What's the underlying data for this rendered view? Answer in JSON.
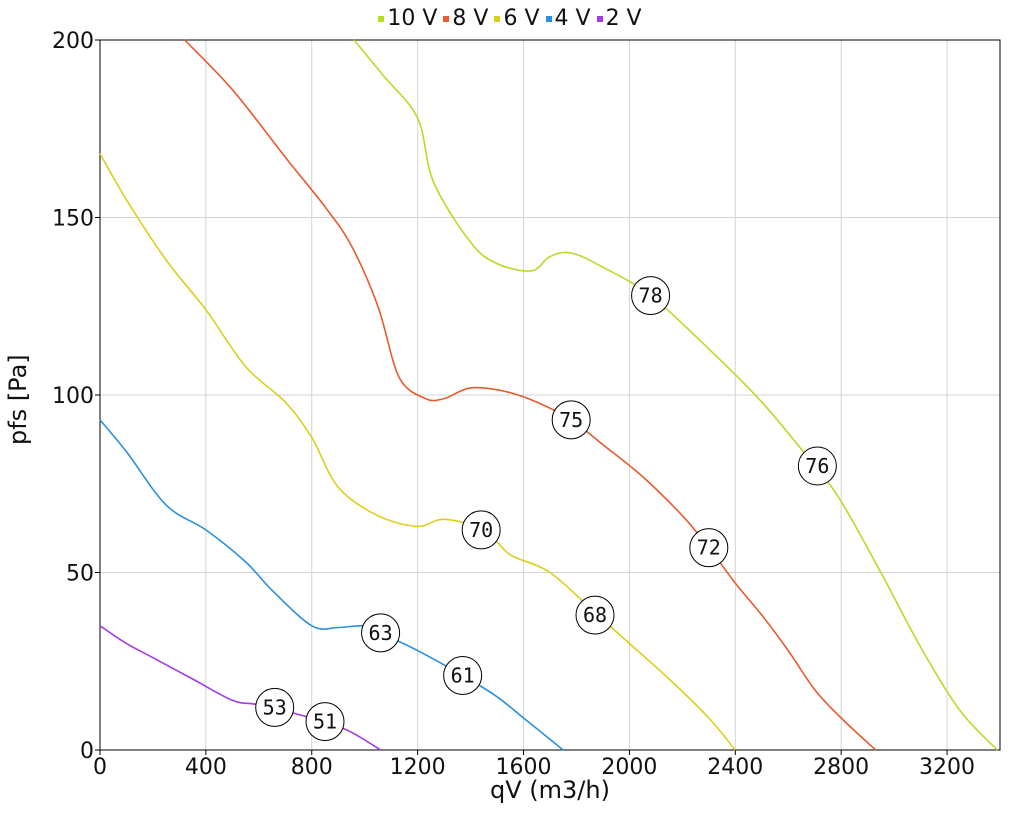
{
  "chart_data": {
    "type": "line",
    "xlabel": "qV (m3/h)",
    "ylabel": "pfs [Pa]",
    "xlim": [
      0,
      3400
    ],
    "ylim": [
      0,
      200
    ],
    "x_ticks": [
      0,
      400,
      800,
      1200,
      1600,
      2000,
      2400,
      2800,
      3200
    ],
    "y_ticks": [
      0,
      50,
      100,
      150,
      200
    ],
    "grid": true,
    "legend_position": "top-center",
    "series": [
      {
        "name": "10 V",
        "color": "#b7dc28",
        "points": [
          [
            960,
            200
          ],
          [
            1070,
            190
          ],
          [
            1200,
            178
          ],
          [
            1260,
            160
          ],
          [
            1400,
            143
          ],
          [
            1500,
            137
          ],
          [
            1630,
            135
          ],
          [
            1700,
            139
          ],
          [
            1780,
            140
          ],
          [
            1900,
            136
          ],
          [
            2080,
            128
          ],
          [
            2300,
            113
          ],
          [
            2500,
            98
          ],
          [
            2700,
            80
          ],
          [
            2800,
            70
          ],
          [
            2950,
            50
          ],
          [
            3100,
            29
          ],
          [
            3250,
            11
          ],
          [
            3390,
            0
          ]
        ],
        "markers": [
          {
            "x": 2080,
            "y": 128,
            "label": "78"
          },
          {
            "x": 2710,
            "y": 80,
            "label": "76"
          }
        ]
      },
      {
        "name": "8 V",
        "color": "#e65c2e",
        "points": [
          [
            320,
            200
          ],
          [
            500,
            186
          ],
          [
            700,
            167
          ],
          [
            850,
            153
          ],
          [
            950,
            142
          ],
          [
            1050,
            125
          ],
          [
            1130,
            105
          ],
          [
            1230,
            99
          ],
          [
            1300,
            99
          ],
          [
            1400,
            102
          ],
          [
            1530,
            101
          ],
          [
            1650,
            98
          ],
          [
            1780,
            93
          ],
          [
            1900,
            86
          ],
          [
            2050,
            77
          ],
          [
            2200,
            66
          ],
          [
            2300,
            57
          ],
          [
            2400,
            47
          ],
          [
            2500,
            38
          ],
          [
            2600,
            28
          ],
          [
            2700,
            17
          ],
          [
            2800,
            9
          ],
          [
            2930,
            0
          ]
        ],
        "markers": [
          {
            "x": 1780,
            "y": 93,
            "label": "75"
          },
          {
            "x": 2300,
            "y": 57,
            "label": "72"
          }
        ]
      },
      {
        "name": "6 V",
        "color": "#dccf1c",
        "points": [
          [
            0,
            168
          ],
          [
            100,
            155
          ],
          [
            250,
            138
          ],
          [
            400,
            124
          ],
          [
            550,
            108
          ],
          [
            700,
            98
          ],
          [
            800,
            88
          ],
          [
            900,
            74
          ],
          [
            1050,
            66
          ],
          [
            1200,
            63
          ],
          [
            1300,
            65
          ],
          [
            1450,
            62
          ],
          [
            1550,
            55
          ],
          [
            1700,
            50
          ],
          [
            1880,
            38
          ],
          [
            2000,
            30
          ],
          [
            2150,
            20
          ],
          [
            2300,
            9
          ],
          [
            2400,
            0
          ]
        ],
        "markers": [
          {
            "x": 1440,
            "y": 62,
            "label": "70"
          },
          {
            "x": 1870,
            "y": 38,
            "label": "68"
          }
        ]
      },
      {
        "name": "4 V",
        "color": "#2b8fe0",
        "points": [
          [
            0,
            93
          ],
          [
            100,
            84
          ],
          [
            250,
            69
          ],
          [
            400,
            62
          ],
          [
            550,
            53
          ],
          [
            650,
            45
          ],
          [
            800,
            35
          ],
          [
            900,
            34.5
          ],
          [
            1000,
            35
          ],
          [
            1060,
            33
          ],
          [
            1200,
            28
          ],
          [
            1370,
            21
          ],
          [
            1500,
            15
          ],
          [
            1600,
            9
          ],
          [
            1700,
            3
          ],
          [
            1750,
            0
          ]
        ],
        "markers": [
          {
            "x": 1060,
            "y": 33,
            "label": "63"
          },
          {
            "x": 1370,
            "y": 21,
            "label": "61"
          }
        ]
      },
      {
        "name": "2 V",
        "color": "#a33ce6",
        "points": [
          [
            0,
            35
          ],
          [
            100,
            30
          ],
          [
            200,
            26
          ],
          [
            350,
            20
          ],
          [
            500,
            14
          ],
          [
            580,
            13
          ],
          [
            660,
            12
          ],
          [
            750,
            10
          ],
          [
            850,
            8
          ],
          [
            950,
            5
          ],
          [
            1060,
            0
          ]
        ],
        "markers": [
          {
            "x": 660,
            "y": 12,
            "label": "53"
          },
          {
            "x": 850,
            "y": 8,
            "label": "51"
          }
        ]
      }
    ]
  }
}
